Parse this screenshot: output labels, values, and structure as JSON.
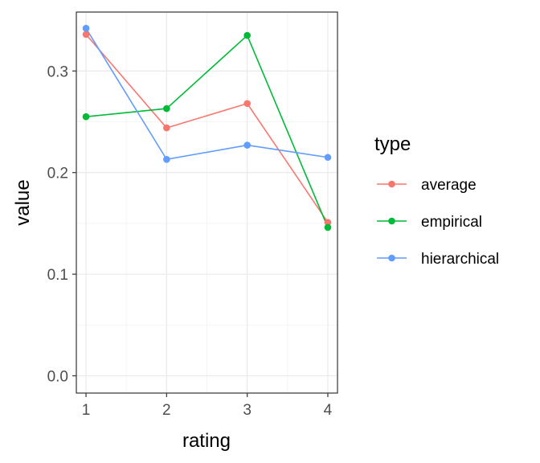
{
  "chart_data": {
    "type": "line",
    "xlabel": "rating",
    "ylabel": "value",
    "x": [
      1,
      2,
      3,
      4
    ],
    "x_ticks": [
      "1",
      "2",
      "3",
      "4"
    ],
    "y_ticks": [
      "0.0",
      "0.1",
      "0.2",
      "0.3"
    ],
    "xlim": [
      0.88,
      4.12
    ],
    "ylim": [
      -0.017,
      0.358
    ],
    "grid": true,
    "legend": {
      "title": "type",
      "placement": "right"
    },
    "series": [
      {
        "name": "average",
        "color": "#F8766D",
        "values": [
          0.336,
          0.244,
          0.268,
          0.151
        ]
      },
      {
        "name": "empirical",
        "color": "#00BA38",
        "values": [
          0.255,
          0.263,
          0.335,
          0.146
        ]
      },
      {
        "name": "hierarchical",
        "color": "#619CFF",
        "values": [
          0.342,
          0.213,
          0.227,
          0.215
        ]
      }
    ]
  }
}
